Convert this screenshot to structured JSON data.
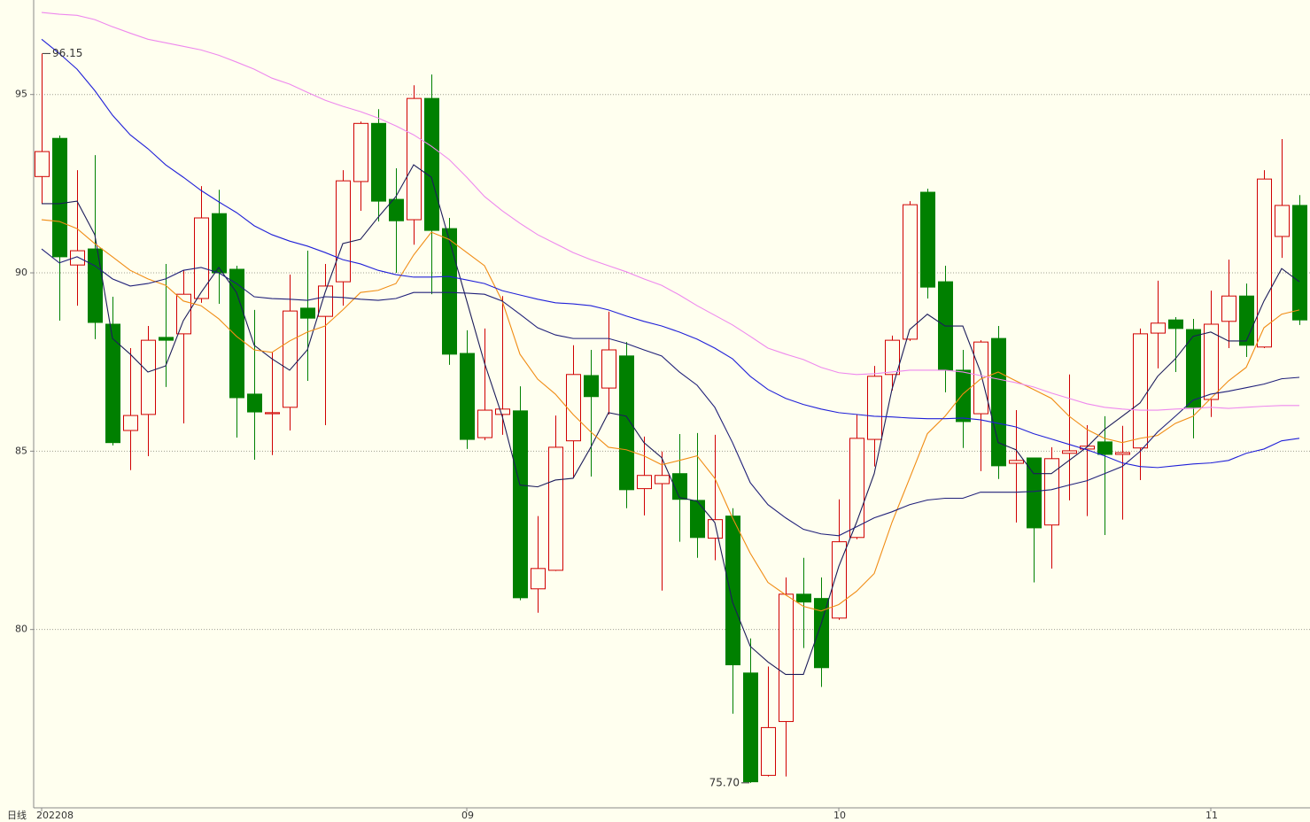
{
  "chart_data": {
    "type": "candlestick",
    "period_label": "日线",
    "categories": [
      "202208",
      null,
      null,
      null,
      null,
      null,
      null,
      null,
      null,
      null,
      null,
      null,
      null,
      null,
      null,
      null,
      null,
      null,
      null,
      null,
      null,
      null,
      null,
      null,
      "09",
      null,
      null,
      null,
      null,
      null,
      null,
      null,
      null,
      null,
      null,
      null,
      null,
      null,
      null,
      null,
      null,
      null,
      null,
      null,
      null,
      "10",
      null,
      null,
      null,
      null,
      null,
      null,
      null,
      null,
      null,
      null,
      null,
      null,
      null,
      null,
      null,
      null,
      null,
      null,
      null,
      null,
      "11",
      null,
      null,
      null,
      null,
      null
    ],
    "open": [
      92.7,
      93.77,
      90.22,
      90.67,
      88.56,
      85.58,
      86.03,
      88.19,
      88.29,
      89.28,
      91.66,
      90.1,
      86.6,
      86.05,
      86.23,
      89.01,
      88.78,
      89.75,
      92.56,
      94.19,
      92.06,
      91.49,
      94.89,
      91.24,
      87.74,
      85.38,
      86.03,
      86.13,
      81.14,
      81.66,
      85.29,
      87.12,
      86.77,
      87.67,
      83.95,
      84.09,
      84.37,
      83.62,
      82.56,
      83.18,
      78.78,
      75.91,
      77.42,
      80.99,
      80.87,
      80.32,
      82.58,
      85.33,
      87.15,
      88.14,
      92.26,
      89.75,
      87.27,
      86.05,
      88.16,
      84.66,
      84.81,
      82.93,
      84.94,
      85.06,
      85.26,
      84.91,
      85.09,
      88.31,
      88.68,
      88.41,
      86.45,
      88.64,
      89.35,
      87.92,
      91.02,
      91.89
    ],
    "high": [
      96.15,
      93.85,
      92.88,
      93.3,
      89.33,
      87.89,
      88.51,
      90.25,
      90.07,
      92.43,
      92.33,
      90.2,
      88.96,
      87.77,
      89.95,
      90.62,
      90.25,
      92.88,
      94.24,
      94.59,
      92.93,
      95.26,
      95.56,
      91.54,
      88.39,
      88.44,
      89.35,
      86.82,
      83.18,
      86.0,
      87.97,
      87.84,
      88.91,
      88.06,
      85.41,
      84.99,
      85.48,
      85.51,
      85.46,
      83.4,
      79.75,
      78.96,
      81.46,
      82.01,
      81.46,
      83.65,
      86.03,
      87.39,
      88.24,
      92.01,
      92.36,
      90.2,
      87.84,
      88.11,
      88.51,
      86.15,
      84.81,
      85.11,
      87.15,
      85.73,
      85.98,
      85.71,
      88.44,
      89.78,
      88.76,
      88.71,
      89.5,
      90.37,
      89.7,
      92.88,
      93.75,
      92.18
    ],
    "low": [
      91.94,
      88.66,
      89.08,
      88.14,
      85.16,
      84.47,
      84.86,
      86.8,
      85.78,
      89.16,
      89.13,
      85.38,
      84.76,
      84.89,
      85.58,
      86.97,
      85.73,
      89.08,
      91.74,
      91.44,
      90.0,
      90.79,
      89.4,
      87.42,
      85.06,
      85.31,
      85.46,
      80.82,
      80.47,
      81.64,
      84.24,
      84.29,
      86.03,
      83.4,
      83.2,
      81.09,
      82.46,
      82.01,
      81.94,
      77.64,
      75.7,
      75.88,
      75.88,
      79.48,
      78.39,
      80.27,
      82.53,
      84.57,
      86.7,
      88.09,
      89.28,
      86.65,
      85.09,
      84.44,
      84.22,
      83.0,
      81.32,
      81.71,
      83.62,
      83.18,
      82.65,
      83.08,
      84.19,
      87.32,
      87.22,
      85.36,
      85.96,
      87.89,
      87.64,
      87.89,
      90.42,
      88.54
    ],
    "close": [
      93.4,
      90.45,
      90.62,
      88.61,
      85.24,
      86.0,
      88.11,
      88.11,
      89.4,
      91.54,
      90.0,
      86.5,
      86.1,
      86.08,
      88.93,
      88.73,
      89.63,
      92.58,
      94.19,
      92.01,
      91.46,
      94.89,
      91.19,
      87.72,
      85.33,
      86.15,
      86.18,
      80.89,
      81.71,
      85.11,
      87.15,
      86.53,
      87.84,
      83.92,
      84.32,
      84.32,
      83.65,
      82.58,
      83.08,
      79.01,
      75.73,
      77.25,
      80.99,
      80.77,
      78.93,
      82.46,
      85.36,
      87.1,
      88.11,
      91.91,
      89.6,
      87.27,
      85.83,
      88.06,
      84.59,
      84.74,
      82.85,
      84.79,
      85.01,
      85.14,
      84.91,
      84.96,
      88.29,
      88.59,
      88.44,
      86.23,
      88.56,
      89.35,
      87.97,
      92.63,
      91.89,
      88.68
    ],
    "up_color": "#d00000",
    "down_color": "#008000",
    "series": [
      {
        "color": "#1c1c5a",
        "values": [
          91.94,
          91.94,
          92.01,
          91.07,
          88.16,
          87.72,
          87.22,
          87.39,
          88.66,
          89.45,
          90.15,
          89.45,
          87.97,
          87.59,
          87.27,
          87.84,
          89.45,
          90.82,
          90.94,
          91.56,
          92.14,
          93.03,
          92.68,
          90.94,
          89.21,
          87.47,
          85.98,
          84.05,
          84.0,
          84.19,
          84.24,
          85.11,
          86.08,
          85.98,
          85.24,
          84.82,
          83.7,
          83.6,
          83.0,
          80.77,
          79.53,
          79.09,
          78.74,
          78.74,
          80.15,
          81.77,
          83.0,
          84.37,
          86.73,
          88.41,
          88.84,
          88.51,
          88.51,
          87.22,
          85.24,
          85.04,
          84.37,
          84.37,
          84.74,
          85.11,
          85.61,
          85.98,
          86.35,
          87.1,
          87.59,
          88.22,
          88.34,
          88.09,
          88.09,
          89.21,
          90.12,
          89.75
        ]
      },
      {
        "color": "#f08c14",
        "values": [
          91.49,
          91.44,
          91.24,
          90.82,
          90.45,
          90.07,
          89.83,
          89.65,
          89.21,
          89.08,
          88.71,
          88.22,
          87.84,
          87.77,
          88.09,
          88.34,
          88.51,
          88.96,
          89.45,
          89.51,
          89.7,
          90.5,
          91.14,
          90.94,
          90.57,
          90.2,
          89.21,
          87.72,
          87.02,
          86.6,
          86.03,
          85.54,
          85.11,
          85.04,
          84.87,
          84.62,
          84.74,
          84.87,
          84.24,
          83.13,
          82.14,
          81.32,
          80.97,
          80.65,
          80.52,
          80.7,
          81.07,
          81.57,
          83.0,
          84.24,
          85.49,
          85.98,
          86.6,
          87.02,
          87.22,
          86.97,
          86.73,
          86.48,
          85.98,
          85.61,
          85.36,
          85.24,
          85.36,
          85.44,
          85.78,
          85.98,
          86.48,
          86.97,
          87.35,
          88.46,
          88.84,
          88.96
        ]
      },
      {
        "color": "#20207a",
        "values": [
          90.67,
          90.28,
          90.45,
          90.2,
          89.83,
          89.63,
          89.7,
          89.83,
          90.07,
          90.15,
          90.0,
          89.7,
          89.33,
          89.28,
          89.26,
          89.23,
          89.33,
          89.31,
          89.26,
          89.23,
          89.28,
          89.45,
          89.45,
          89.45,
          89.43,
          89.4,
          89.21,
          88.84,
          88.46,
          88.26,
          88.16,
          88.16,
          88.16,
          88.02,
          87.84,
          87.67,
          87.22,
          86.85,
          86.23,
          85.24,
          84.12,
          83.5,
          83.13,
          82.81,
          82.68,
          82.63,
          82.88,
          83.13,
          83.3,
          83.5,
          83.63,
          83.68,
          83.68,
          83.85,
          83.85,
          83.85,
          83.87,
          83.92,
          84.05,
          84.17,
          84.37,
          84.57,
          84.99,
          85.54,
          85.98,
          86.43,
          86.6,
          86.68,
          86.78,
          86.88,
          87.03,
          87.07
        ]
      },
      {
        "color": "#2020d8",
        "values": [
          96.55,
          96.15,
          95.71,
          95.11,
          94.42,
          93.87,
          93.48,
          93.03,
          92.68,
          92.31,
          91.99,
          91.69,
          91.32,
          91.07,
          90.89,
          90.75,
          90.57,
          90.37,
          90.25,
          90.07,
          89.95,
          89.88,
          89.88,
          89.9,
          89.8,
          89.7,
          89.5,
          89.38,
          89.26,
          89.16,
          89.13,
          89.08,
          88.96,
          88.79,
          88.64,
          88.51,
          88.34,
          88.14,
          87.89,
          87.59,
          87.1,
          86.73,
          86.48,
          86.31,
          86.18,
          86.08,
          86.03,
          85.98,
          85.96,
          85.93,
          85.91,
          85.91,
          85.93,
          85.88,
          85.78,
          85.68,
          85.49,
          85.34,
          85.19,
          85.04,
          84.87,
          84.67,
          84.57,
          84.54,
          84.59,
          84.64,
          84.67,
          84.74,
          84.94,
          85.06,
          85.29,
          85.36
        ]
      },
      {
        "color": "#ee88ee",
        "values": [
          97.3,
          97.25,
          97.22,
          97.1,
          96.9,
          96.72,
          96.55,
          96.45,
          96.35,
          96.25,
          96.1,
          95.91,
          95.71,
          95.46,
          95.29,
          95.06,
          94.84,
          94.67,
          94.52,
          94.34,
          94.12,
          93.87,
          93.55,
          93.18,
          92.68,
          92.14,
          91.74,
          91.39,
          91.07,
          90.82,
          90.57,
          90.37,
          90.2,
          90.03,
          89.83,
          89.65,
          89.38,
          89.08,
          88.81,
          88.54,
          88.22,
          87.89,
          87.72,
          87.57,
          87.35,
          87.2,
          87.15,
          87.17,
          87.22,
          87.27,
          87.27,
          87.27,
          87.22,
          87.12,
          87.02,
          86.92,
          86.8,
          86.63,
          86.48,
          86.33,
          86.23,
          86.18,
          86.15,
          86.15,
          86.18,
          86.2,
          86.23,
          86.2,
          86.23,
          86.26,
          86.28,
          86.28
        ]
      }
    ],
    "annotations": [
      {
        "text": "96.15"
      },
      {
        "text": "75.70"
      }
    ],
    "ylim": [
      75.0,
      97.65
    ],
    "yticks": [
      80,
      85,
      90,
      95
    ],
    "grid": true
  }
}
